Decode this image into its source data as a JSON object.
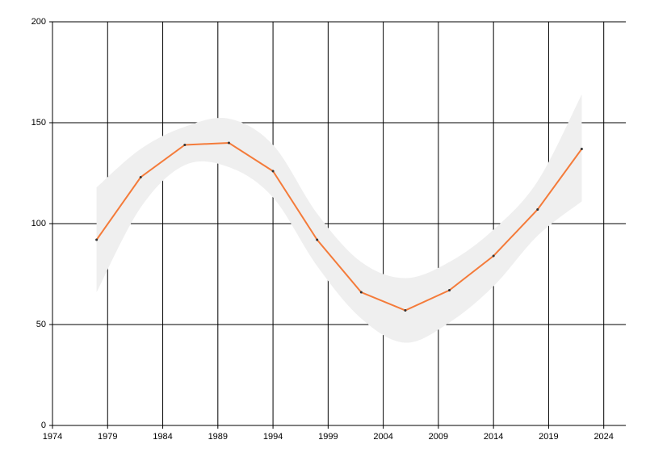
{
  "chart_data": {
    "type": "line",
    "x": [
      1978,
      1982,
      1986,
      1990,
      1994,
      1998,
      2002,
      2006,
      2010,
      2014,
      2018,
      2022
    ],
    "values": [
      92,
      123,
      139,
      140,
      126,
      92,
      66,
      57,
      67,
      84,
      107,
      137
    ],
    "band_upper": [
      118,
      137,
      148,
      152,
      139,
      105,
      81,
      73,
      81,
      97,
      121,
      164
    ],
    "band_lower": [
      66,
      108,
      129,
      128,
      113,
      79,
      53,
      41,
      51,
      69,
      94,
      111
    ],
    "color": "#f47b3a",
    "band_color": "#efefef",
    "marker_color": "#333333",
    "xlim": [
      1974,
      2026
    ],
    "xticks": [
      1974,
      1979,
      1984,
      1989,
      1994,
      1999,
      2004,
      2009,
      2014,
      2019,
      2024
    ],
    "ylim": [
      0,
      200
    ],
    "yticks": [
      0,
      50,
      100,
      150,
      200
    ],
    "grid": true
  }
}
